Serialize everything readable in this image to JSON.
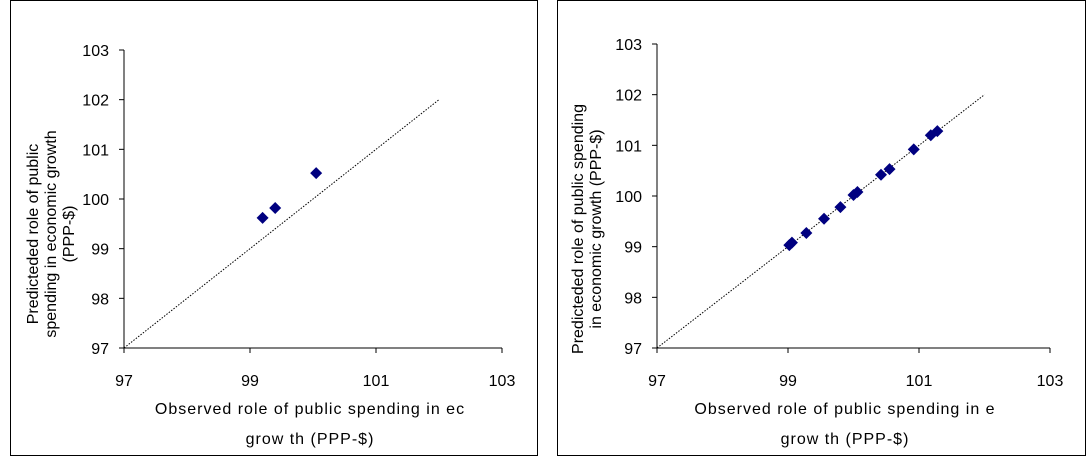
{
  "charts": [
    {
      "chart_data": {
        "type": "scatter",
        "xlim": [
          97,
          103
        ],
        "ylim": [
          97,
          103
        ],
        "x_ticks": [
          "97",
          "99",
          "101",
          "103"
        ],
        "y_ticks": [
          "97",
          "98",
          "99",
          "100",
          "101",
          "102",
          "103"
        ],
        "xlabel_lines": [
          "Observed role of public spending in ec",
          "grow th (PPP-$)"
        ],
        "ylabel_lines": [
          "Predicteded role of public",
          "spending in economic growth",
          "(PPP-$)"
        ],
        "reference_line": {
          "from": [
            97,
            97
          ],
          "to": [
            102,
            102
          ]
        },
        "marker_color": "#000080",
        "series": [
          {
            "points": [
              [
                99.2,
                99.62
              ],
              [
                99.4,
                99.82
              ],
              [
                100.05,
                100.52
              ]
            ]
          }
        ]
      }
    },
    {
      "chart_data": {
        "type": "scatter",
        "xlim": [
          97,
          103
        ],
        "ylim": [
          97,
          103
        ],
        "x_ticks": [
          "97",
          "99",
          "101",
          "103"
        ],
        "y_ticks": [
          "97",
          "98",
          "99",
          "100",
          "101",
          "102",
          "103"
        ],
        "xlabel_lines": [
          "Observed role of public spending in e",
          "grow th (PPP-$)"
        ],
        "ylabel_lines": [
          "Predicteded role of public spending",
          "in economic growth (PPP-$)"
        ],
        "reference_line": {
          "from": [
            97,
            97
          ],
          "to": [
            102,
            102
          ]
        },
        "marker_color": "#000080",
        "series": [
          {
            "points": [
              [
                99.02,
                99.03
              ],
              [
                99.06,
                99.08
              ],
              [
                99.28,
                99.27
              ],
              [
                99.55,
                99.55
              ],
              [
                99.8,
                99.78
              ],
              [
                100.0,
                100.02
              ],
              [
                100.06,
                100.08
              ],
              [
                100.42,
                100.42
              ],
              [
                100.55,
                100.53
              ],
              [
                100.92,
                100.92
              ],
              [
                101.18,
                101.2
              ],
              [
                101.28,
                101.28
              ]
            ]
          }
        ]
      }
    }
  ]
}
